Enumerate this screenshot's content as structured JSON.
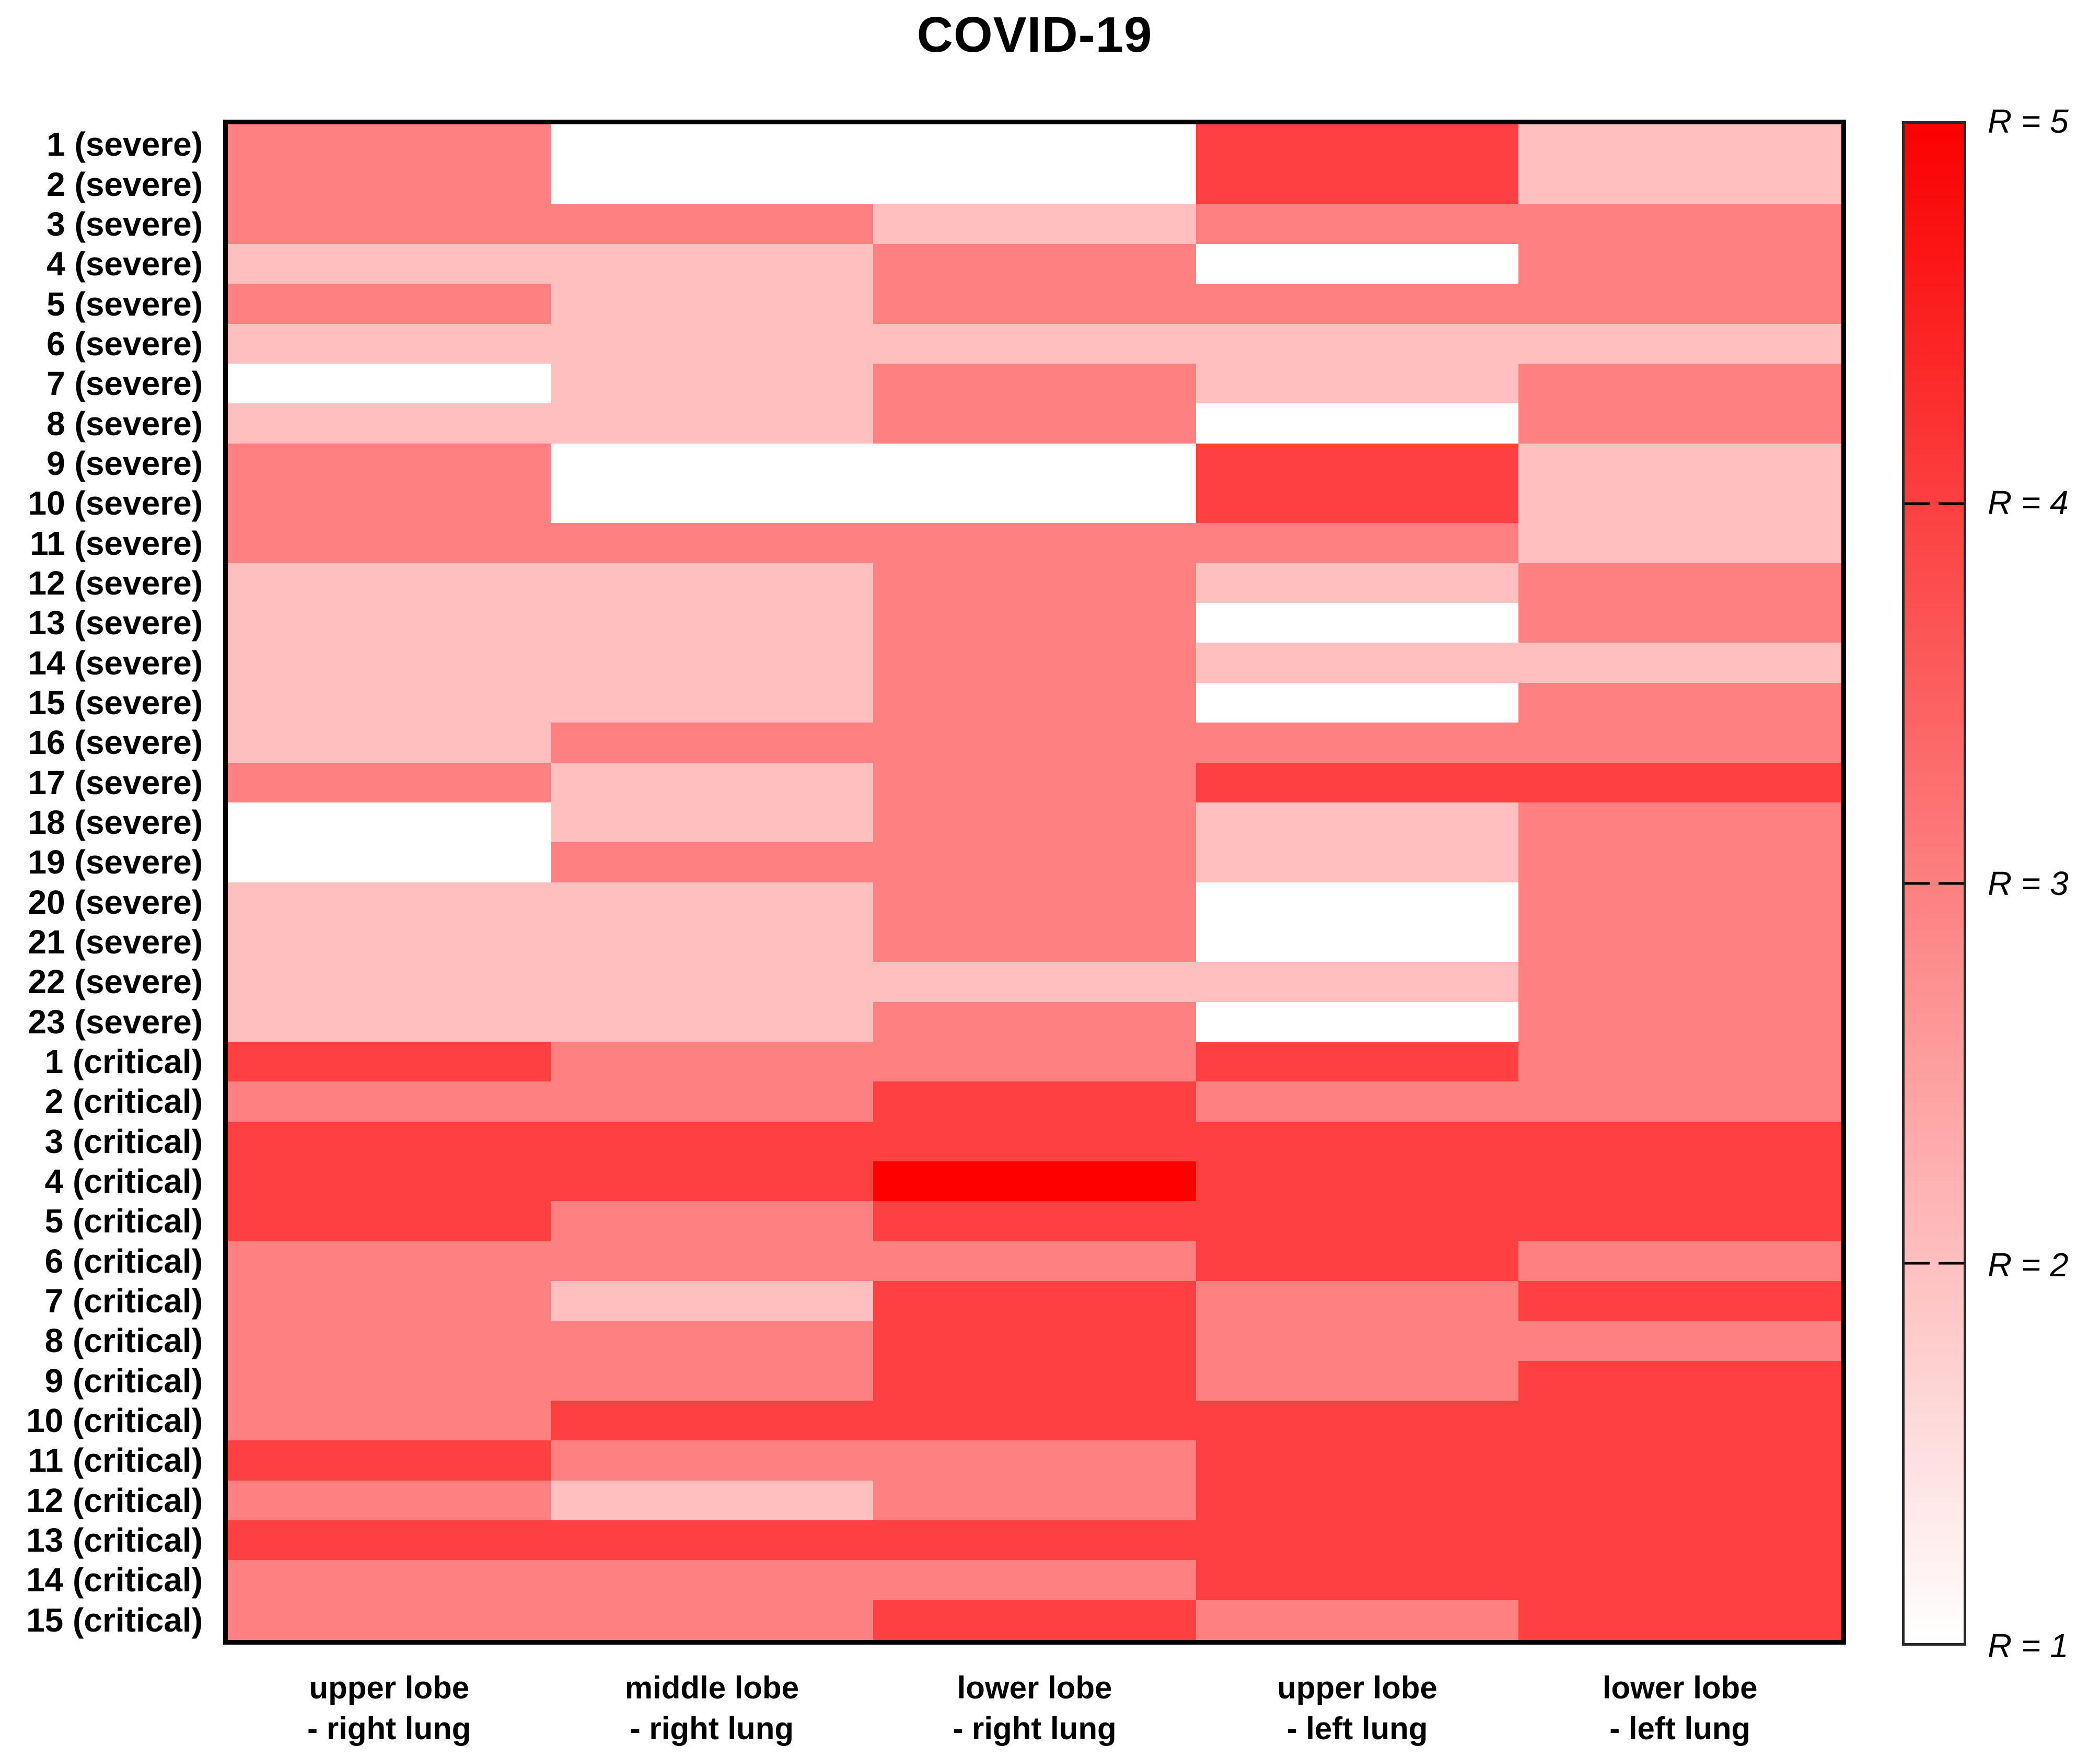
{
  "title": "COVID-19",
  "chart_data": {
    "type": "heatmap",
    "title": "COVID-19",
    "columns": [
      "upper lobe - right lung",
      "middle lobe - right lung",
      "lower lobe - right lung",
      "upper lobe - left lung",
      "lower lobe - left lung"
    ],
    "rows": [
      "1 (severe)",
      "2 (severe)",
      "3 (severe)",
      "4 (severe)",
      "5 (severe)",
      "6 (severe)",
      "7 (severe)",
      "8 (severe)",
      "9 (severe)",
      "10 (severe)",
      "11 (severe)",
      "12 (severe)",
      "13 (severe)",
      "14 (severe)",
      "15 (severe)",
      "16 (severe)",
      "17 (severe)",
      "18 (severe)",
      "19 (severe)",
      "20 (severe)",
      "21 (severe)",
      "22 (severe)",
      "23 (severe)",
      "1 (critical)",
      "2 (critical)",
      "3 (critical)",
      "4 (critical)",
      "5 (critical)",
      "6 (critical)",
      "7 (critical)",
      "8 (critical)",
      "9 (critical)",
      "10 (critical)",
      "11 (critical)",
      "12 (critical)",
      "13 (critical)",
      "14 (critical)",
      "15 (critical)"
    ],
    "values": [
      [
        3,
        1,
        1,
        4,
        2
      ],
      [
        3,
        1,
        1,
        4,
        2
      ],
      [
        3,
        3,
        2,
        3,
        3
      ],
      [
        2,
        2,
        3,
        1,
        3
      ],
      [
        3,
        2,
        3,
        3,
        3
      ],
      [
        2,
        2,
        2,
        2,
        2
      ],
      [
        1,
        2,
        3,
        2,
        3
      ],
      [
        2,
        2,
        3,
        1,
        3
      ],
      [
        3,
        1,
        1,
        4,
        2
      ],
      [
        3,
        1,
        1,
        4,
        2
      ],
      [
        3,
        3,
        3,
        3,
        2
      ],
      [
        2,
        2,
        3,
        2,
        3
      ],
      [
        2,
        2,
        3,
        1,
        3
      ],
      [
        2,
        2,
        3,
        2,
        2
      ],
      [
        2,
        2,
        3,
        1,
        3
      ],
      [
        2,
        3,
        3,
        3,
        3
      ],
      [
        3,
        2,
        3,
        4,
        4
      ],
      [
        1,
        2,
        3,
        2,
        3
      ],
      [
        1,
        3,
        3,
        2,
        3
      ],
      [
        2,
        2,
        3,
        1,
        3
      ],
      [
        2,
        2,
        3,
        1,
        3
      ],
      [
        2,
        2,
        2,
        2,
        3
      ],
      [
        2,
        2,
        3,
        1,
        3
      ],
      [
        4,
        3,
        3,
        4,
        3
      ],
      [
        3,
        3,
        4,
        3,
        3
      ],
      [
        4,
        4,
        4,
        4,
        4
      ],
      [
        4,
        4,
        5,
        4,
        4
      ],
      [
        4,
        3,
        4,
        4,
        4
      ],
      [
        3,
        3,
        3,
        4,
        3
      ],
      [
        3,
        2,
        4,
        3,
        4
      ],
      [
        3,
        3,
        4,
        3,
        3
      ],
      [
        3,
        3,
        4,
        3,
        4
      ],
      [
        3,
        4,
        4,
        4,
        4
      ],
      [
        4,
        3,
        3,
        4,
        4
      ],
      [
        3,
        2,
        3,
        4,
        4
      ],
      [
        4,
        4,
        4,
        4,
        4
      ],
      [
        3,
        3,
        3,
        4,
        4
      ],
      [
        3,
        3,
        4,
        3,
        4
      ]
    ],
    "value_scale": {
      "name": "R",
      "min": 1,
      "max": 5,
      "min_color": "#ffffff",
      "max_color": "#ff0000"
    },
    "legend": {
      "position": "right",
      "tick_labels": [
        "R = 5",
        "R = 4",
        "R = 3",
        "R = 2",
        "R = 1"
      ],
      "tick_values": [
        5,
        4,
        3,
        2,
        1
      ],
      "inner_tick_values": [
        4,
        3,
        2
      ]
    }
  }
}
